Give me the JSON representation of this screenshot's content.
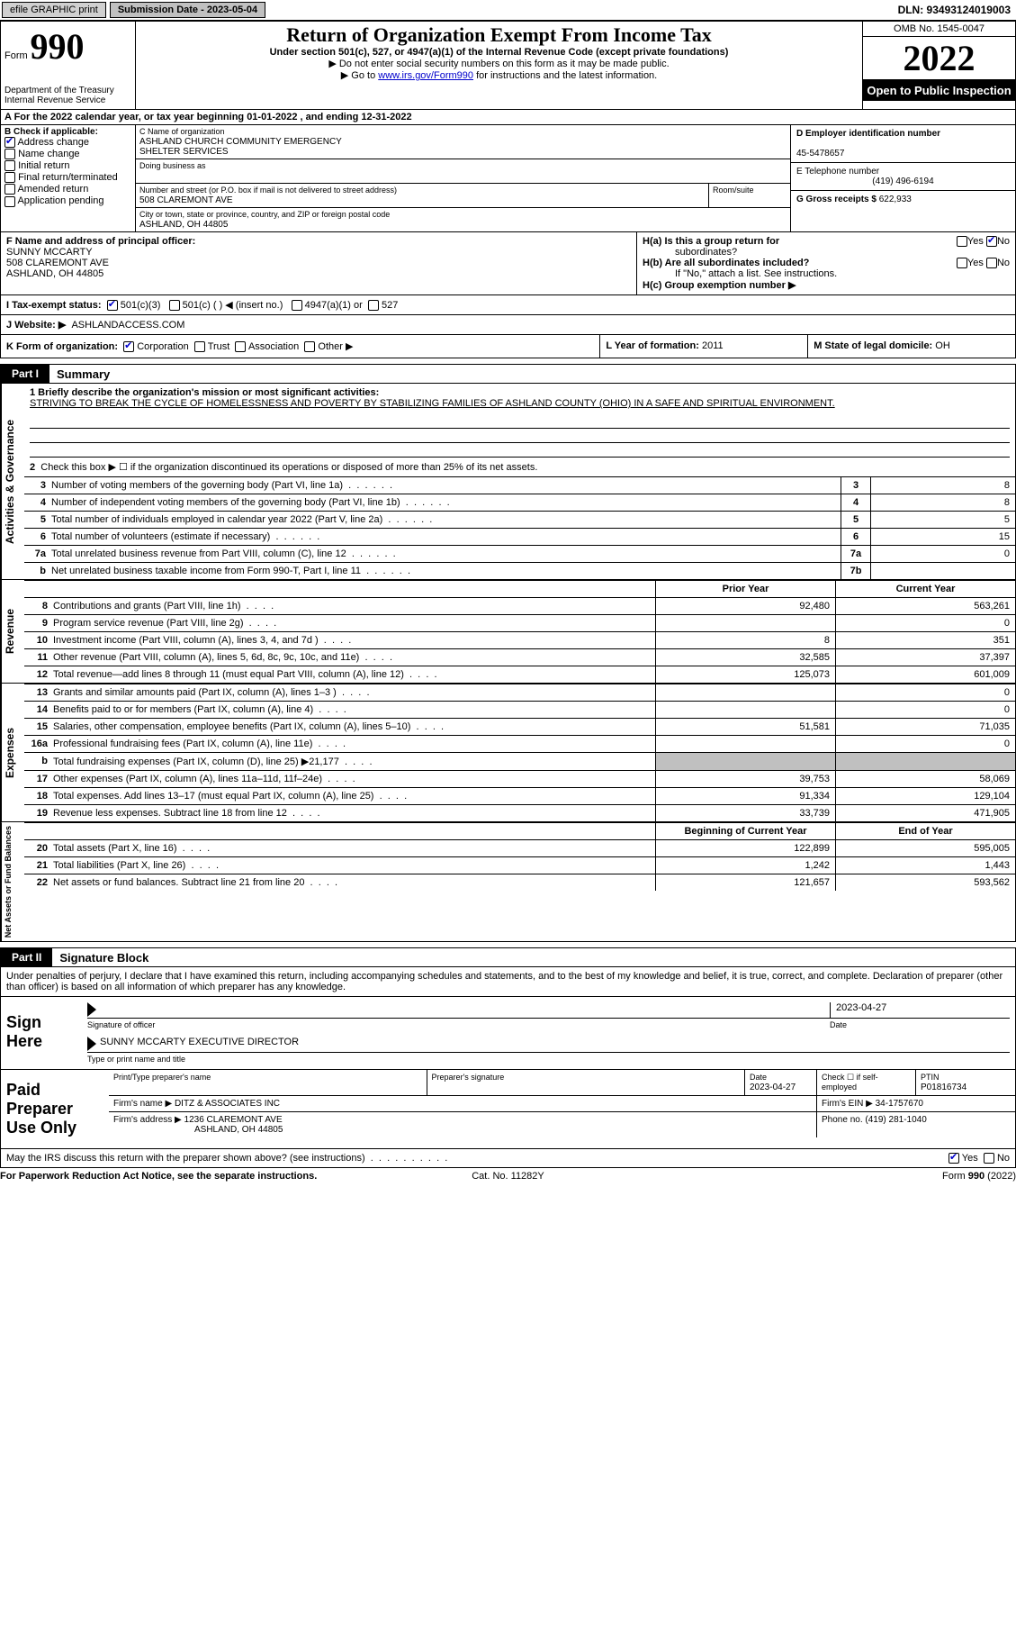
{
  "topbar": {
    "btn_efile": "efile GRAPHIC print",
    "submission_label": "Submission Date - 2023-05-04",
    "dln_label": "DLN: 93493124019003"
  },
  "header": {
    "form_label": "Form",
    "form_number": "990",
    "dept": "Department of the Treasury",
    "irs": "Internal Revenue Service",
    "title": "Return of Organization Exempt From Income Tax",
    "subtitle": "Under section 501(c), 527, or 4947(a)(1) of the Internal Revenue Code (except private foundations)",
    "note1": "▶ Do not enter social security numbers on this form as it may be made public.",
    "note2_pre": "▶ Go to ",
    "note2_link": "www.irs.gov/Form990",
    "note2_post": " for instructions and the latest information.",
    "omb": "OMB No. 1545-0047",
    "year": "2022",
    "open": "Open to Public Inspection"
  },
  "line_a": "A For the 2022 calendar year, or tax year beginning 01-01-2022    , and ending 12-31-2022",
  "box_b": {
    "label": "B Check if applicable:",
    "addr": "Address change",
    "name": "Name change",
    "init": "Initial return",
    "final": "Final return/terminated",
    "amend": "Amended return",
    "app": "Application pending"
  },
  "box_c": {
    "label": "C Name of organization",
    "org1": "ASHLAND CHURCH COMMUNITY EMERGENCY",
    "org2": "SHELTER SERVICES",
    "dba_label": "Doing business as",
    "street_label": "Number and street (or P.O. box if mail is not delivered to street address)",
    "street": "508 CLAREMONT AVE",
    "room_label": "Room/suite",
    "city_label": "City or town, state or province, country, and ZIP or foreign postal code",
    "city": "ASHLAND, OH   44805"
  },
  "box_d": {
    "label": "D Employer identification number",
    "ein": "45-5478657",
    "e_label": "E Telephone number",
    "phone": "(419) 496-6194",
    "g_label": "G Gross receipts $",
    "gross": "622,933"
  },
  "box_f": {
    "label": "F Name and address of principal officer:",
    "name": "SUNNY MCCARTY",
    "street": "508 CLAREMONT AVE",
    "city": "ASHLAND, OH   44805"
  },
  "box_h": {
    "a_label": "H(a)  Is this a group return for",
    "a_sub": "subordinates?",
    "b_label": "H(b)  Are all subordinates included?",
    "b_note": "If \"No,\" attach a list. See instructions.",
    "c_label": "H(c)  Group exemption number ▶",
    "yes": "Yes",
    "no": "No"
  },
  "line_i": {
    "label": "I   Tax-exempt status:",
    "c3": "501(c)(3)",
    "c": "501(c) (  ) ◀ (insert no.)",
    "a1": "4947(a)(1) or",
    "s527": "527"
  },
  "line_j": {
    "label": "J   Website: ▶",
    "site": "ASHLANDACCESS.COM"
  },
  "line_k": {
    "label": "K Form of organization:",
    "corp": "Corporation",
    "trust": "Trust",
    "assoc": "Association",
    "other": "Other ▶",
    "l_label": "L Year of formation: ",
    "l_val": "2011",
    "m_label": "M State of legal domicile: ",
    "m_val": "OH"
  },
  "part1": {
    "tab": "Part I",
    "title": "Summary",
    "vert1": "Activities & Governance",
    "line1_label": "1  Briefly describe the organization's mission or most significant activities:",
    "mission": "STRIVING TO BREAK THE CYCLE OF HOMELESSNESS AND POVERTY BY STABILIZING FAMILIES OF ASHLAND COUNTY (OHIO) IN A SAFE AND SPIRITUAL ENVIRONMENT.",
    "line2": "Check this box ▶ ☐  if the organization discontinued its operations or disposed of more than 25% of its net assets.",
    "rows_gov": [
      {
        "n": "3",
        "d": "Number of voting members of the governing body (Part VI, line 1a)",
        "box": "3",
        "v": "8"
      },
      {
        "n": "4",
        "d": "Number of independent voting members of the governing body (Part VI, line 1b)",
        "box": "4",
        "v": "8"
      },
      {
        "n": "5",
        "d": "Total number of individuals employed in calendar year 2022 (Part V, line 2a)",
        "box": "5",
        "v": "5"
      },
      {
        "n": "6",
        "d": "Total number of volunteers (estimate if necessary)",
        "box": "6",
        "v": "15"
      },
      {
        "n": "7a",
        "d": "Total unrelated business revenue from Part VIII, column (C), line 12",
        "box": "7a",
        "v": "0"
      },
      {
        "n": "b",
        "d": "Net unrelated business taxable income from Form 990-T, Part I, line 11",
        "box": "7b",
        "v": ""
      }
    ],
    "prior_label": "Prior Year",
    "current_label": "Current Year",
    "vert2": "Revenue",
    "rows_rev": [
      {
        "n": "8",
        "d": "Contributions and grants (Part VIII, line 1h)",
        "p": "92,480",
        "c": "563,261"
      },
      {
        "n": "9",
        "d": "Program service revenue (Part VIII, line 2g)",
        "p": "",
        "c": "0"
      },
      {
        "n": "10",
        "d": "Investment income (Part VIII, column (A), lines 3, 4, and 7d )",
        "p": "8",
        "c": "351"
      },
      {
        "n": "11",
        "d": "Other revenue (Part VIII, column (A), lines 5, 6d, 8c, 9c, 10c, and 11e)",
        "p": "32,585",
        "c": "37,397"
      },
      {
        "n": "12",
        "d": "Total revenue—add lines 8 through 11 (must equal Part VIII, column (A), line 12)",
        "p": "125,073",
        "c": "601,009"
      }
    ],
    "vert3": "Expenses",
    "rows_exp": [
      {
        "n": "13",
        "d": "Grants and similar amounts paid (Part IX, column (A), lines 1–3 )",
        "p": "",
        "c": "0"
      },
      {
        "n": "14",
        "d": "Benefits paid to or for members (Part IX, column (A), line 4)",
        "p": "",
        "c": "0"
      },
      {
        "n": "15",
        "d": "Salaries, other compensation, employee benefits (Part IX, column (A), lines 5–10)",
        "p": "51,581",
        "c": "71,035"
      },
      {
        "n": "16a",
        "d": "Professional fundraising fees (Part IX, column (A), line 11e)",
        "p": "",
        "c": "0"
      },
      {
        "n": "b",
        "d": "Total fundraising expenses (Part IX, column (D), line 25) ▶21,177",
        "p": "GREY",
        "c": "GREY"
      },
      {
        "n": "17",
        "d": "Other expenses (Part IX, column (A), lines 11a–11d, 11f–24e)",
        "p": "39,753",
        "c": "58,069"
      },
      {
        "n": "18",
        "d": "Total expenses. Add lines 13–17 (must equal Part IX, column (A), line 25)",
        "p": "91,334",
        "c": "129,104"
      },
      {
        "n": "19",
        "d": "Revenue less expenses. Subtract line 18 from line 12",
        "p": "33,739",
        "c": "471,905"
      }
    ],
    "boy_label": "Beginning of Current Year",
    "eoy_label": "End of Year",
    "vert4": "Net Assets or Fund Balances",
    "rows_net": [
      {
        "n": "20",
        "d": "Total assets (Part X, line 16)",
        "p": "122,899",
        "c": "595,005"
      },
      {
        "n": "21",
        "d": "Total liabilities (Part X, line 26)",
        "p": "1,242",
        "c": "1,443"
      },
      {
        "n": "22",
        "d": "Net assets or fund balances. Subtract line 21 from line 20",
        "p": "121,657",
        "c": "593,562"
      }
    ]
  },
  "part2": {
    "tab": "Part II",
    "title": "Signature Block",
    "penalty": "Under penalties of perjury, I declare that I have examined this return, including accompanying schedules and statements, and to the best of my knowledge and belief, it is true, correct, and complete. Declaration of preparer (other than officer) is based on all information of which preparer has any knowledge.",
    "sign_here": "Sign Here",
    "sig_date": "2023-04-27",
    "sig_officer_cap": "Signature of officer",
    "date_cap": "Date",
    "sig_name": "SUNNY MCCARTY  EXECUTIVE DIRECTOR",
    "type_cap": "Type or print name and title",
    "paid_label": "Paid Preparer Use Only",
    "print_name_h": "Print/Type preparer's name",
    "prep_sig_h": "Preparer's signature",
    "date_h": "Date",
    "prep_date": "2023-04-27",
    "check_self": "Check ☐ if self-employed",
    "ptin_h": "PTIN",
    "ptin": "P01816734",
    "firm_name_l": "Firm's name    ▶",
    "firm_name": "DITZ & ASSOCIATES INC",
    "firm_ein_l": "Firm's EIN ▶",
    "firm_ein": "34-1757670",
    "firm_addr_l": "Firm's address ▶",
    "firm_addr1": "1236 CLAREMONT AVE",
    "firm_addr2": "ASHLAND, OH  44805",
    "phone_l": "Phone no.",
    "phone": "(419) 281-1040",
    "discuss": "May the IRS discuss this return with the preparer shown above? (see instructions)",
    "yes": "Yes",
    "no": "No"
  },
  "footer": {
    "left": "For Paperwork Reduction Act Notice, see the separate instructions.",
    "mid": "Cat. No. 11282Y",
    "right": "Form 990 (2022)"
  }
}
